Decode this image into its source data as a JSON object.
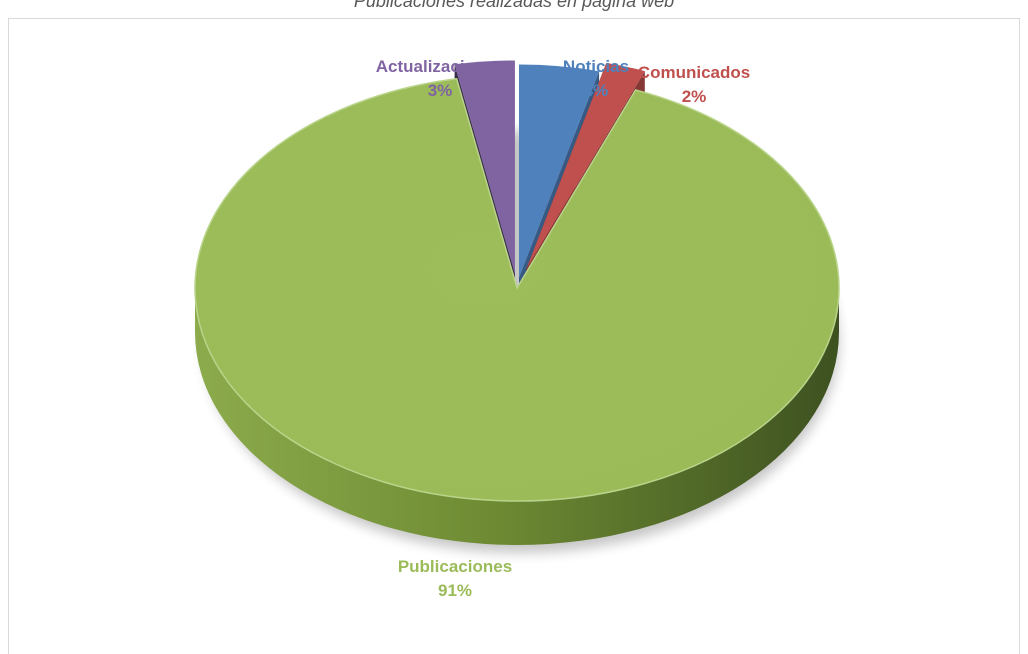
{
  "caption": "Publicaciones realizadas en página web",
  "chart_data": {
    "type": "pie",
    "title": "",
    "slices": [
      {
        "label": "Noticias",
        "value": 4,
        "display": "4%",
        "color": "#4F81BD"
      },
      {
        "label": "Comunicados",
        "value": 2,
        "display": "2%",
        "color": "#C0504D"
      },
      {
        "label": "Publicaciones",
        "value": 91,
        "display": "91%",
        "color": "#9BBB59"
      },
      {
        "label": "Actualizaciones",
        "value": 3,
        "display": "3%",
        "color": "#8064A2"
      }
    ],
    "unit": "%",
    "legend": "none",
    "style": "3d-exploded"
  }
}
